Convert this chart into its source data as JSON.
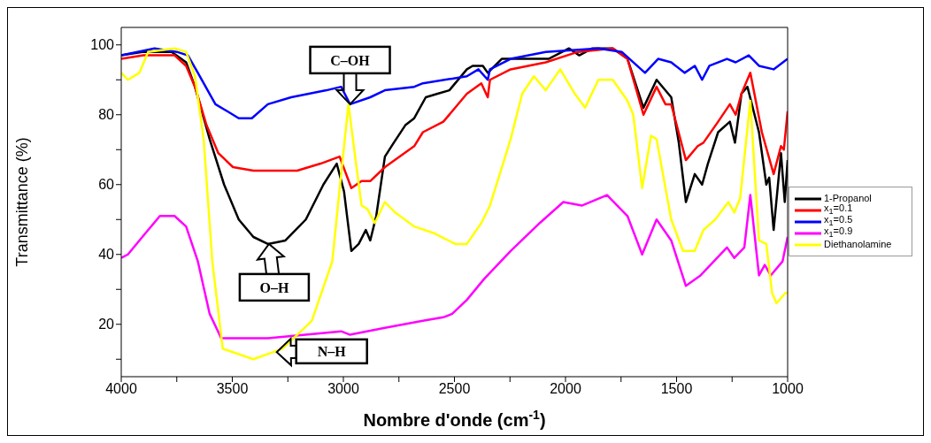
{
  "chart_data": {
    "type": "line",
    "xlabel": "Nombre d'onde (cm$^{-1}$)",
    "ylabel": "Transmittance (%)",
    "xlim": [
      4000,
      1000
    ],
    "xticks": [
      4000,
      {
        "value": 3750,
        "label": null
      },
      3500,
      {
        "value": 3250,
        "label": null
      },
      3000,
      {
        "value": 2750,
        "label": null
      },
      2500,
      {
        "value": 2250,
        "label": null
      },
      2000,
      {
        "value": 1750,
        "label": null
      },
      1500,
      {
        "value": 1250,
        "label": null
      },
      1000
    ],
    "ylim": [
      5,
      105
    ],
    "yticks": [
      {
        "value": 10,
        "label": null
      },
      20,
      {
        "value": 30,
        "label": null
      },
      40,
      {
        "value": 50,
        "label": null
      },
      60,
      {
        "value": 70,
        "label": null
      },
      80,
      {
        "value": 90,
        "label": null
      },
      100
    ],
    "legend": "right",
    "marker": "none",
    "line_style": "solid",
    "series": [
      {
        "name": "1-Propanol",
        "color": "#000000",
        "x": [
          4000,
          3905,
          3773,
          3708,
          3668,
          3602,
          3537,
          3471,
          3405,
          3340,
          3261,
          3169,
          3090,
          3030,
          2997,
          2964,
          2931,
          2899,
          2879,
          2852,
          2813,
          2773,
          2721,
          2681,
          2629,
          2576,
          2523,
          2444,
          2418,
          2372,
          2350,
          2287,
          2076,
          1984,
          1938,
          1879,
          1787,
          1721,
          1649,
          1590,
          1524,
          1490,
          1458,
          1418,
          1385,
          1359,
          1313,
          1260,
          1237,
          1208,
          1181,
          1129,
          1096,
          1083,
          1063,
          1030,
          1013,
          1000
        ],
        "values": [
          97,
          98,
          98,
          95,
          88,
          73,
          60,
          50,
          45,
          43,
          44,
          50,
          60,
          66,
          58,
          41,
          43,
          47,
          44,
          51,
          68,
          72,
          77,
          79,
          85,
          86,
          87,
          93,
          94,
          94,
          92,
          96,
          96,
          99,
          97,
          99,
          99,
          96,
          82,
          90,
          85,
          72,
          55,
          63,
          60,
          66,
          75,
          78,
          72,
          86,
          88,
          75,
          60,
          62,
          47,
          69,
          55,
          67
        ]
      },
      {
        "name": "x$_{1}$=0.1",
        "color": "#ff0000",
        "x": [
          4000,
          3900,
          3760,
          3708,
          3668,
          3616,
          3563,
          3497,
          3405,
          3208,
          3103,
          3017,
          2964,
          2918,
          2879,
          2813,
          2681,
          2642,
          2550,
          2510,
          2444,
          2379,
          2350,
          2340,
          2247,
          2089,
          1944,
          1787,
          1721,
          1649,
          1590,
          1550,
          1524,
          1458,
          1405,
          1379,
          1313,
          1260,
          1234,
          1208,
          1168,
          1116,
          1063,
          1030,
          1017,
          1000
        ],
        "values": [
          96,
          97,
          97,
          94,
          88,
          77,
          69,
          65,
          64,
          64,
          66,
          68,
          59,
          61,
          61,
          65,
          71,
          75,
          78,
          81,
          86,
          89,
          85,
          90,
          93,
          95,
          98,
          99,
          96,
          80,
          88,
          83,
          83,
          67,
          71,
          72,
          78,
          83,
          80,
          86,
          92,
          75,
          63,
          71,
          70,
          81
        ]
      },
      {
        "name": "x$_{1}$=0.5",
        "color": "#0000ff",
        "x": [
          4000,
          3850,
          3750,
          3700,
          3655,
          3576,
          3523,
          3471,
          3412,
          3340,
          3235,
          3076,
          3010,
          2970,
          2879,
          2813,
          2681,
          2642,
          2444,
          2392,
          2350,
          2340,
          2247,
          2089,
          1852,
          1747,
          1642,
          1583,
          1524,
          1464,
          1418,
          1385,
          1352,
          1273,
          1234,
          1175,
          1129,
          1063,
          1000
        ],
        "values": [
          97,
          99,
          98,
          97,
          92,
          83,
          81,
          79,
          79,
          83,
          85,
          87,
          88,
          83,
          85,
          87,
          88,
          89,
          91,
          93,
          90,
          93,
          96,
          98,
          99,
          98,
          92,
          96,
          95,
          92,
          94,
          90,
          94,
          96,
          95,
          97,
          94,
          93,
          96
        ]
      },
      {
        "name": "x$_{1}$=0.9",
        "color": "#ff00ff",
        "x": [
          4000,
          3970,
          3892,
          3826,
          3760,
          3708,
          3655,
          3602,
          3550,
          3340,
          3010,
          2970,
          2813,
          2642,
          2550,
          2510,
          2444,
          2366,
          2247,
          2116,
          2010,
          1925,
          1813,
          1721,
          1655,
          1590,
          1524,
          1458,
          1392,
          1273,
          1240,
          1195,
          1168,
          1129,
          1103,
          1076,
          1023,
          1000
        ],
        "values": [
          39,
          40,
          46,
          51,
          51,
          48,
          38,
          23,
          16,
          16,
          18,
          17,
          19,
          21,
          22,
          23,
          27,
          33,
          41,
          49,
          55,
          54,
          57,
          51,
          40,
          50,
          44,
          31,
          34,
          42,
          39,
          42,
          57,
          34,
          37,
          34,
          38,
          45
        ]
      },
      {
        "name": "Diethanolamine",
        "color": "#ffff00",
        "x": [
          4000,
          3970,
          3918,
          3879,
          3760,
          3708,
          3668,
          3629,
          3590,
          3543,
          3405,
          3274,
          3142,
          3050,
          3010,
          2977,
          2945,
          2918,
          2892,
          2859,
          2813,
          2767,
          2681,
          2589,
          2497,
          2444,
          2379,
          2340,
          2247,
          2195,
          2142,
          2089,
          2024,
          1958,
          1912,
          1852,
          1787,
          1721,
          1695,
          1655,
          1615,
          1590,
          1524,
          1471,
          1418,
          1379,
          1326,
          1267,
          1240,
          1214,
          1168,
          1129,
          1096,
          1070,
          1050,
          1010,
          1000
        ],
        "values": [
          92,
          90,
          92,
          98,
          99,
          98,
          91,
          73,
          38,
          13,
          10,
          13,
          21,
          38,
          63,
          83,
          67,
          54,
          53,
          49,
          55,
          52,
          48,
          46,
          43,
          43,
          49,
          54,
          73,
          86,
          91,
          87,
          93,
          86,
          82,
          90,
          90,
          84,
          80,
          59,
          74,
          73,
          50,
          41,
          41,
          47,
          50,
          55,
          52,
          56,
          84,
          44,
          43,
          29,
          26,
          29,
          29
        ]
      }
    ],
    "annotations": [
      {
        "text": "C–OH",
        "x": 2970,
        "y": 83
      },
      {
        "text": "O–H",
        "x": 3335,
        "y": 43
      },
      {
        "text": "N–H",
        "x": 3300,
        "y": 12
      }
    ]
  }
}
